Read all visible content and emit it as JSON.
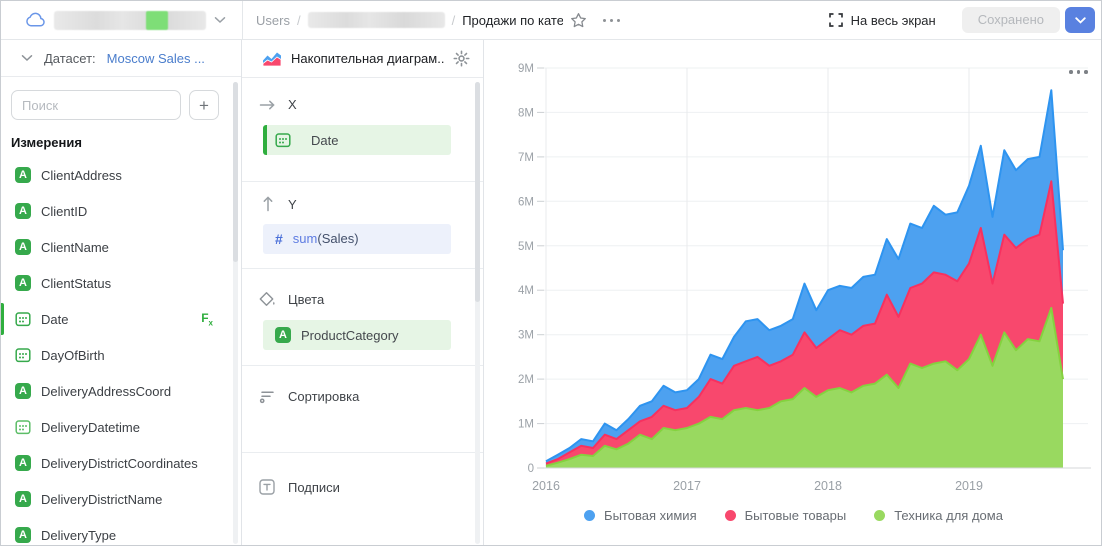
{
  "topbar": {
    "breadcrumb_root": "Users",
    "breadcrumb_sep1": "/",
    "breadcrumb_sep2": "/",
    "title": "Продажи по кате",
    "fullscreen": "На весь экран",
    "saved": "Сохранено"
  },
  "sidebar": {
    "dataset_label": "Датасет:",
    "dataset_name": "Moscow Sales ...",
    "search_placeholder": "Поиск",
    "add_label": "+",
    "section_title": "Измерения",
    "fields": [
      {
        "name": "ClientAddress",
        "type": "string"
      },
      {
        "name": "ClientID",
        "type": "string"
      },
      {
        "name": "ClientName",
        "type": "string"
      },
      {
        "name": "ClientStatus",
        "type": "string"
      },
      {
        "name": "Date",
        "type": "date",
        "active": true,
        "fx": true
      },
      {
        "name": "DayOfBirth",
        "type": "date"
      },
      {
        "name": "DeliveryAddressCoord",
        "type": "string"
      },
      {
        "name": "DeliveryDatetime",
        "type": "datetime"
      },
      {
        "name": "DeliveryDistrictCoordinates",
        "type": "string"
      },
      {
        "name": "DeliveryDistrictName",
        "type": "string"
      },
      {
        "name": "DeliveryType",
        "type": "string"
      }
    ]
  },
  "panel": {
    "chart_type": "Накопительная диаграм...",
    "x_label": "X",
    "x_field": "Date",
    "y_label": "Y",
    "y_fn": "sum",
    "y_arg": "(Sales)",
    "colors_label": "Цвета",
    "colors_field": "ProductCategory",
    "sort_label": "Сортировка",
    "labels_label": "Подписи"
  },
  "chart_data": {
    "type": "area",
    "stacked": true,
    "x_unit": "month",
    "x_start": "2016-01",
    "x_tick_labels": [
      "2016",
      "2017",
      "2018",
      "2019"
    ],
    "x_tick_month_index": [
      0,
      12,
      24,
      36
    ],
    "y_tick_labels": [
      "0",
      "1M",
      "2M",
      "3M",
      "4M",
      "5M",
      "6M",
      "7M",
      "8M",
      "9M"
    ],
    "ylim_millions": [
      0,
      9
    ],
    "values_unit": "millions",
    "grid": true,
    "legend_position": "bottom",
    "stack_bottom_to_top": [
      "Техника для дома",
      "Бытовые товары",
      "Бытовая химия"
    ],
    "series": [
      {
        "name": "Бытовая химия",
        "color": "#4da1f0",
        "line_color": "#2e94f0",
        "values": [
          0.05,
          0.1,
          0.1,
          0.15,
          0.15,
          0.25,
          0.2,
          0.25,
          0.35,
          0.35,
          0.45,
          0.4,
          0.4,
          0.4,
          0.55,
          0.55,
          0.65,
          0.9,
          0.85,
          0.8,
          0.8,
          0.8,
          1.1,
          0.85,
          1.1,
          1.0,
          1.05,
          1.1,
          1.1,
          1.25,
          1.3,
          1.45,
          1.25,
          1.5,
          1.35,
          1.55,
          1.75,
          1.85,
          1.5,
          1.9,
          1.75,
          1.8,
          1.75,
          2.05,
          1.2
        ]
      },
      {
        "name": "Бытовые товары",
        "color": "#f8486d",
        "line_color": "#f7315f",
        "values": [
          0.05,
          0.08,
          0.15,
          0.2,
          0.18,
          0.25,
          0.23,
          0.3,
          0.3,
          0.5,
          0.5,
          0.45,
          0.45,
          0.6,
          0.85,
          0.8,
          1.0,
          1.05,
          1.2,
          0.95,
          0.9,
          1.0,
          1.25,
          1.1,
          1.15,
          1.3,
          1.3,
          1.35,
          1.35,
          1.8,
          1.6,
          1.7,
          1.9,
          2.05,
          1.95,
          2.0,
          2.15,
          2.4,
          1.85,
          2.2,
          2.3,
          2.25,
          2.4,
          2.85,
          1.7
        ]
      },
      {
        "name": "Техника для дома",
        "color": "#99d960",
        "line_color": "#84d23f",
        "values": [
          0.05,
          0.12,
          0.2,
          0.3,
          0.27,
          0.5,
          0.42,
          0.55,
          0.75,
          0.65,
          0.9,
          0.85,
          0.9,
          1.0,
          1.15,
          1.1,
          1.3,
          1.35,
          1.3,
          1.35,
          1.5,
          1.55,
          1.8,
          1.6,
          1.75,
          1.8,
          1.7,
          1.85,
          1.9,
          2.1,
          1.8,
          2.35,
          2.25,
          2.35,
          2.4,
          2.2,
          2.45,
          3.0,
          2.3,
          3.05,
          2.65,
          2.9,
          2.85,
          3.6,
          2.0
        ]
      }
    ]
  }
}
